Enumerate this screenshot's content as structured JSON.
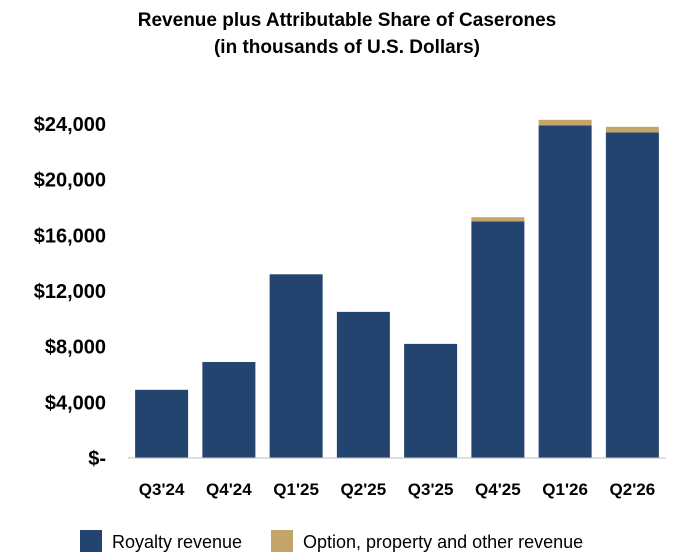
{
  "chart_data": {
    "type": "bar",
    "stacked": true,
    "title": "Revenue plus Attributable Share of Caserones",
    "subtitle": "(in thousands of U.S. Dollars)",
    "categories": [
      "Q3'24",
      "Q4'24",
      "Q1'25",
      "Q2'25",
      "Q3'25",
      "Q4'25",
      "Q1'26",
      "Q2'26"
    ],
    "series": [
      {
        "name": "Royalty revenue",
        "color": "#22446f",
        "values": [
          4900,
          6900,
          13200,
          10500,
          8200,
          17000,
          23900,
          23400
        ]
      },
      {
        "name": "Option, property and other revenue",
        "color": "#c3a56a",
        "values": [
          0,
          0,
          0,
          0,
          0,
          300,
          400,
          400
        ]
      }
    ],
    "yticks": [
      0,
      4000,
      8000,
      12000,
      16000,
      20000,
      24000
    ],
    "ytick_labels": [
      "$-",
      "$4,000",
      "$8,000",
      "$12,000",
      "$16,000",
      "$20,000",
      "$24,000"
    ],
    "ylim": [
      0,
      24000
    ],
    "grid": false,
    "legend_position": "bottom"
  }
}
